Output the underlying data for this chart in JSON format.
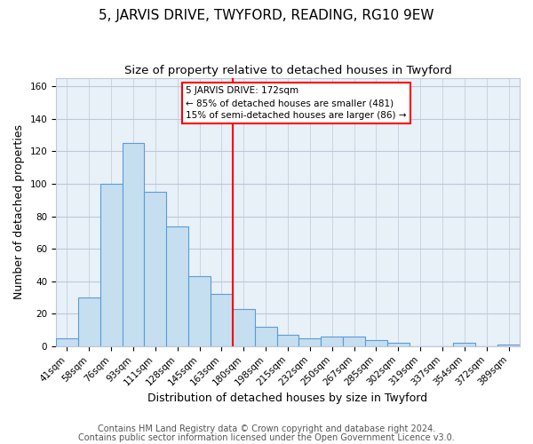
{
  "title": "5, JARVIS DRIVE, TWYFORD, READING, RG10 9EW",
  "subtitle": "Size of property relative to detached houses in Twyford",
  "xlabel": "Distribution of detached houses by size in Twyford",
  "ylabel": "Number of detached properties",
  "bar_color": "#c5dff0",
  "bar_edge_color": "#5b9bd5",
  "bin_labels": [
    "41sqm",
    "58sqm",
    "76sqm",
    "93sqm",
    "111sqm",
    "128sqm",
    "145sqm",
    "163sqm",
    "180sqm",
    "198sqm",
    "215sqm",
    "232sqm",
    "250sqm",
    "267sqm",
    "285sqm",
    "302sqm",
    "319sqm",
    "337sqm",
    "354sqm",
    "372sqm",
    "389sqm"
  ],
  "bar_heights": [
    5,
    30,
    100,
    125,
    95,
    74,
    43,
    32,
    23,
    12,
    7,
    5,
    6,
    6,
    4,
    2,
    0,
    0,
    2,
    0,
    1
  ],
  "ylim": [
    0,
    165
  ],
  "yticks": [
    0,
    20,
    40,
    60,
    80,
    100,
    120,
    140,
    160
  ],
  "property_line_x": 7.5,
  "annotation_title": "5 JARVIS DRIVE: 172sqm",
  "annotation_line1": "← 85% of detached houses are smaller (481)",
  "annotation_line2": "15% of semi-detached houses are larger (86) →",
  "footnote1": "Contains HM Land Registry data © Crown copyright and database right 2024.",
  "footnote2": "Contains public sector information licensed under the Open Government Licence v3.0.",
  "background_color": "#ffffff",
  "plot_bg_color": "#e8f0f8",
  "grid_color": "#c0c8d8",
  "title_fontsize": 11,
  "subtitle_fontsize": 9.5,
  "axis_label_fontsize": 9,
  "tick_fontsize": 7.5,
  "footnote_fontsize": 7
}
